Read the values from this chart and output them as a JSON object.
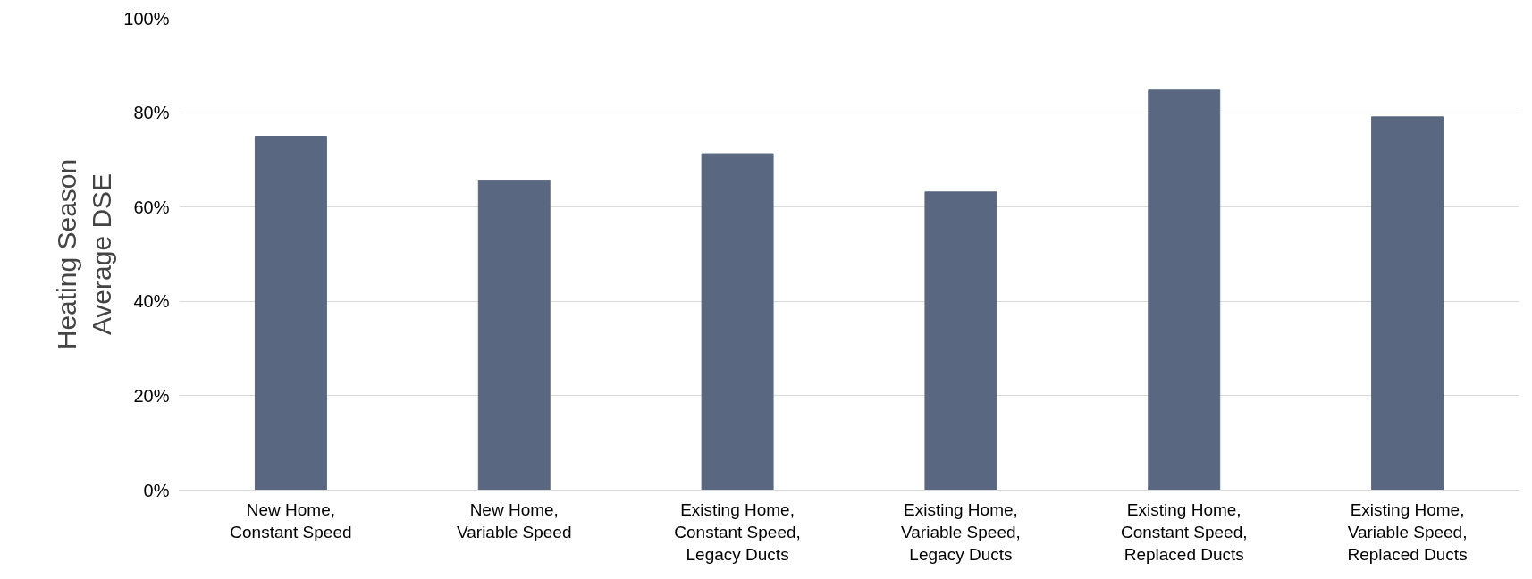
{
  "chart_data": {
    "type": "bar",
    "ylabel": "Heating Season\nAverage DSE",
    "categories": [
      "New Home,\nConstant Speed",
      "New Home,\nVariable Speed",
      "Existing Home,\nConstant Speed,\nLegacy Ducts",
      "Existing Home,\nVariable Speed,\nLegacy Ducts",
      "Existing Home,\nConstant Speed,\nReplaced Ducts",
      "Existing Home,\nVariable Speed,\nReplaced Ducts"
    ],
    "values": [
      0.75,
      0.656,
      0.713,
      0.632,
      0.848,
      0.791
    ],
    "color": "#5a6780",
    "ylim": [
      0,
      1
    ],
    "yticks": [
      {
        "value": 0,
        "label": "0%"
      },
      {
        "value": 0.2,
        "label": "20%"
      },
      {
        "value": 0.4,
        "label": "40%"
      },
      {
        "value": 0.6,
        "label": "60%"
      },
      {
        "value": 0.8,
        "label": "80%"
      },
      {
        "value": 1,
        "label": "100%"
      }
    ],
    "grid": "y"
  }
}
